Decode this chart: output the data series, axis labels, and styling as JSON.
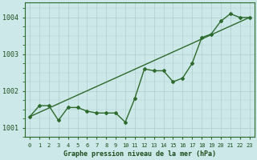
{
  "title": "Graphe pression niveau de la mer (hPa)",
  "xlabel_hours": [
    0,
    1,
    2,
    3,
    4,
    5,
    6,
    7,
    8,
    9,
    10,
    11,
    12,
    13,
    14,
    15,
    16,
    17,
    18,
    19,
    20,
    21,
    22,
    23
  ],
  "pressure_detailed": [
    1001.3,
    1001.6,
    1001.6,
    1001.2,
    1001.55,
    1001.55,
    1001.45,
    1001.4,
    1001.4,
    1001.4,
    1001.15,
    1001.8,
    1002.6,
    1002.55,
    1002.55,
    1002.25,
    1002.35,
    1002.75,
    1003.45,
    1003.55,
    1003.9,
    1004.1,
    1004.0,
    1004.0
  ],
  "trend_x": [
    0,
    23
  ],
  "trend_y": [
    1001.3,
    1004.0
  ],
  "line_color": "#2d6a2d",
  "bg_color": "#cce8e8",
  "grid_color": "#b0cccc",
  "text_color": "#1a4d1a",
  "ylim": [
    1000.75,
    1004.4
  ],
  "yticks": [
    1001,
    1002,
    1003,
    1004
  ],
  "xlim": [
    -0.5,
    23.5
  ],
  "figsize": [
    3.2,
    2.0
  ],
  "dpi": 100
}
